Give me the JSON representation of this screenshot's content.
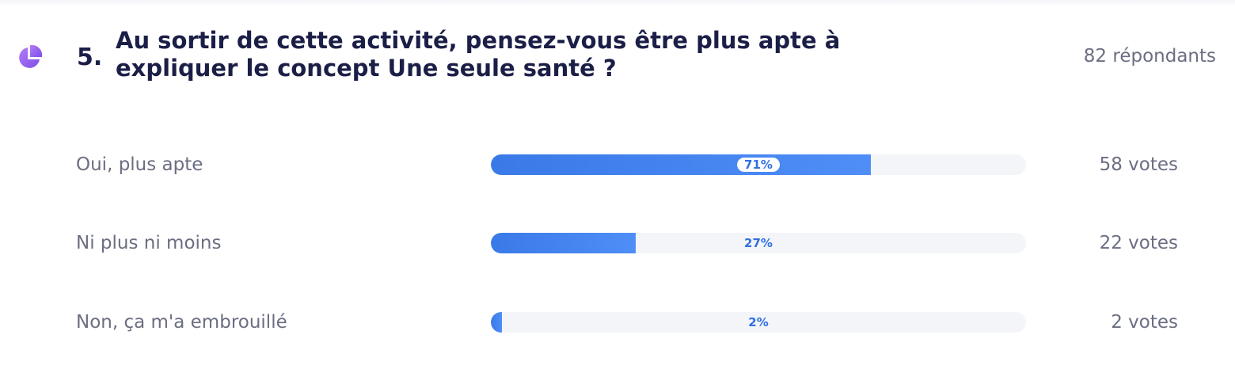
{
  "question": {
    "number": "5.",
    "title": "Au sortir de cette activité, pensez-vous être plus apte à expliquer le concept Une seule santé ?",
    "respondents": "82 répondants",
    "icon": "pie-chart-icon",
    "accent_color": "#8b5cf6"
  },
  "chart_data": {
    "type": "bar",
    "orientation": "horizontal",
    "categories": [
      "Oui, plus apte",
      "Ni plus ni moins",
      "Non, ça m'a embrouillé"
    ],
    "values": [
      71,
      27,
      2
    ],
    "value_labels": [
      "71%",
      "27%",
      "2%"
    ],
    "votes": [
      58,
      22,
      2
    ],
    "vote_labels": [
      "58 votes",
      "22 votes",
      "2 votes"
    ],
    "xlim": [
      0,
      100
    ],
    "bar_color": "#3d7cf0",
    "track_color": "#f4f5f9"
  }
}
